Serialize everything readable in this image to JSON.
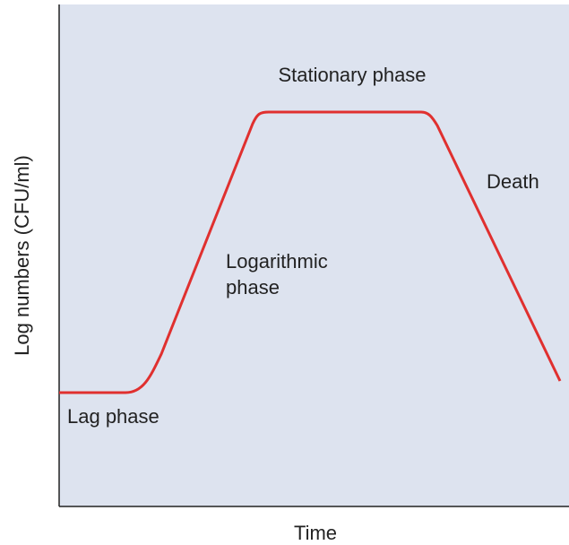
{
  "y_axis_label": "Log numbers (CFU/ml)",
  "x_axis_label": "Time",
  "phases": {
    "lag": "Lag phase",
    "logarithmic": [
      "Logarithmic",
      "phase"
    ],
    "stationary": "Stationary phase",
    "death": "Death"
  }
}
